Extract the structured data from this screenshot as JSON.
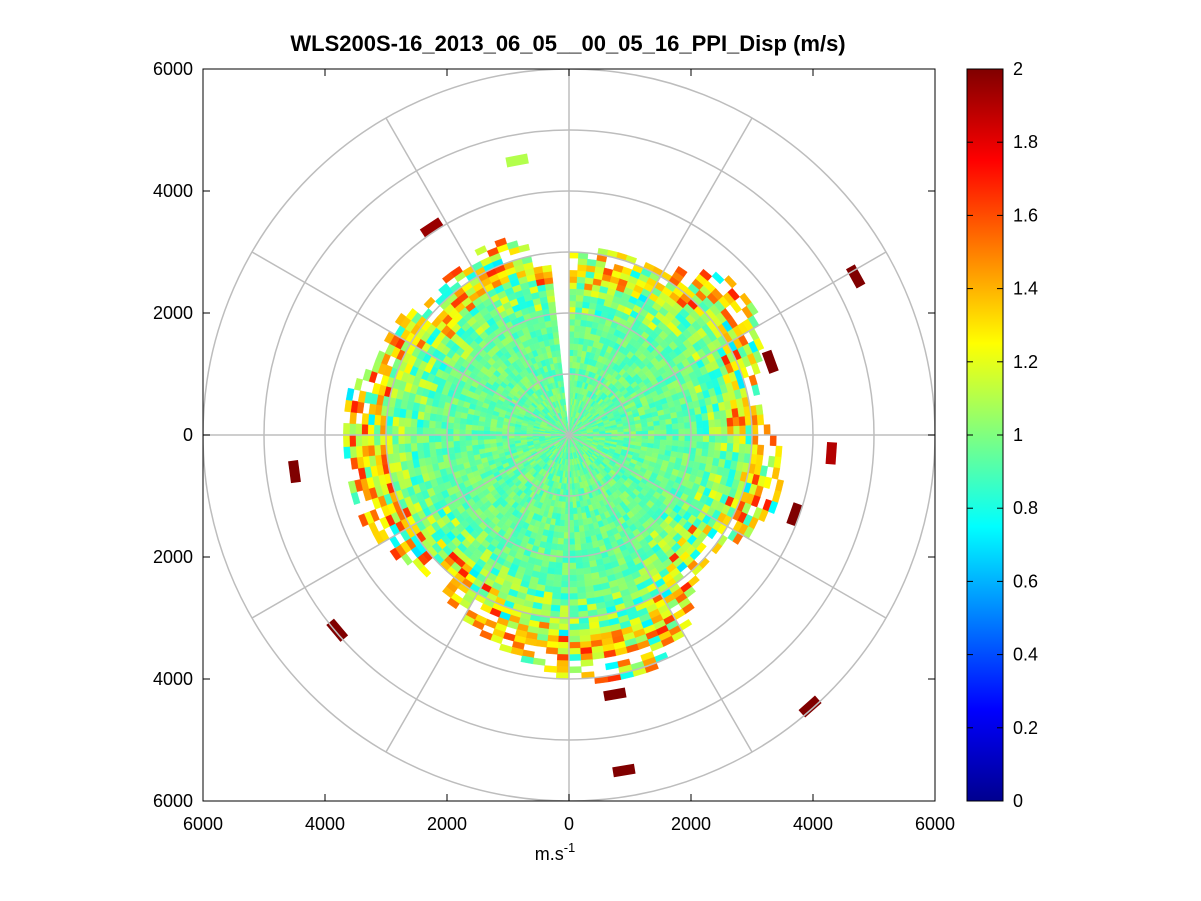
{
  "chart_data": {
    "type": "heatmap",
    "subtype": "polar-ppi-scan",
    "title": "WLS200S-16_2013_06_05__00_05_16_PPI_Disp (m/s)",
    "xlabel_base": "m.s",
    "xlabel_sup": "-1",
    "ylabel": "",
    "xlim": [
      -6000,
      6000
    ],
    "ylim": [
      -6000,
      6000
    ],
    "x_tick_labels": [
      "6000",
      "4000",
      "2000",
      "0",
      "2000",
      "4000",
      "6000"
    ],
    "y_tick_labels": [
      "6000",
      "4000",
      "2000",
      "0",
      "2000",
      "4000",
      "6000"
    ],
    "polar_grid": {
      "ring_radii": [
        1000,
        2000,
        3000,
        4000,
        5000,
        6000
      ],
      "spoke_angles_deg": [
        0,
        30,
        60,
        90,
        120,
        150,
        180,
        210,
        240,
        270,
        300,
        330
      ]
    },
    "colorbar": {
      "min": 0,
      "max": 2,
      "tick_labels": [
        "0",
        "0.2",
        "0.4",
        "0.6",
        "0.8",
        "1",
        "1.2",
        "1.4",
        "1.6",
        "1.8",
        "2"
      ],
      "colormap": "jet"
    },
    "scan": {
      "typical_value": 0.95,
      "dense_radius_max_by_azimuth": [
        {
          "az": 0,
          "r": 2950
        },
        {
          "az": 10,
          "r": 3000
        },
        {
          "az": 20,
          "r": 3050
        },
        {
          "az": 30,
          "r": 3100
        },
        {
          "az": 40,
          "r": 3450
        },
        {
          "az": 50,
          "r": 3700
        },
        {
          "az": 60,
          "r": 3550
        },
        {
          "az": 70,
          "r": 3350
        },
        {
          "az": 80,
          "r": 3100
        },
        {
          "az": 90,
          "r": 3250
        },
        {
          "az": 100,
          "r": 3600
        },
        {
          "az": 110,
          "r": 3500
        },
        {
          "az": 120,
          "r": 3300
        },
        {
          "az": 130,
          "r": 3000
        },
        {
          "az": 140,
          "r": 3200
        },
        {
          "az": 150,
          "r": 3700
        },
        {
          "az": 160,
          "r": 4000
        },
        {
          "az": 170,
          "r": 4050
        },
        {
          "az": 180,
          "r": 4000
        },
        {
          "az": 190,
          "r": 3800
        },
        {
          "az": 200,
          "r": 3550
        },
        {
          "az": 210,
          "r": 3400
        },
        {
          "az": 220,
          "r": 3200
        },
        {
          "az": 230,
          "r": 3350
        },
        {
          "az": 240,
          "r": 3550
        },
        {
          "az": 250,
          "r": 3650
        },
        {
          "az": 260,
          "r": 3700
        },
        {
          "az": 270,
          "r": 3700
        },
        {
          "az": 280,
          "r": 3650
        },
        {
          "az": 290,
          "r": 3400
        },
        {
          "az": 300,
          "r": 3550
        },
        {
          "az": 310,
          "r": 3100
        },
        {
          "az": 320,
          "r": 3200
        },
        {
          "az": 330,
          "r": 3350
        },
        {
          "az": 340,
          "r": 3350
        },
        {
          "az": 350,
          "r": 3000
        },
        {
          "az": 360,
          "r": 2950
        }
      ],
      "gap_azimuth_deg": [
        356,
        360
      ],
      "outlier_patches": [
        {
          "x": -850,
          "y": 4500,
          "value": 1.1
        },
        {
          "x": -2250,
          "y": 3400,
          "value": 1.95
        },
        {
          "x": 4700,
          "y": 2600,
          "value": 2.0
        },
        {
          "x": -4500,
          "y": -600,
          "value": 2.0
        },
        {
          "x": 4300,
          "y": -300,
          "value": 1.9
        },
        {
          "x": -3800,
          "y": -3200,
          "value": 2.0
        },
        {
          "x": 3950,
          "y": -4450,
          "value": 2.0
        },
        {
          "x": 900,
          "y": -5500,
          "value": 2.0
        },
        {
          "x": 750,
          "y": -4250,
          "value": 2.0
        },
        {
          "x": 3300,
          "y": 1200,
          "value": 2.0
        },
        {
          "x": 3700,
          "y": -1300,
          "value": 2.0
        }
      ]
    }
  }
}
